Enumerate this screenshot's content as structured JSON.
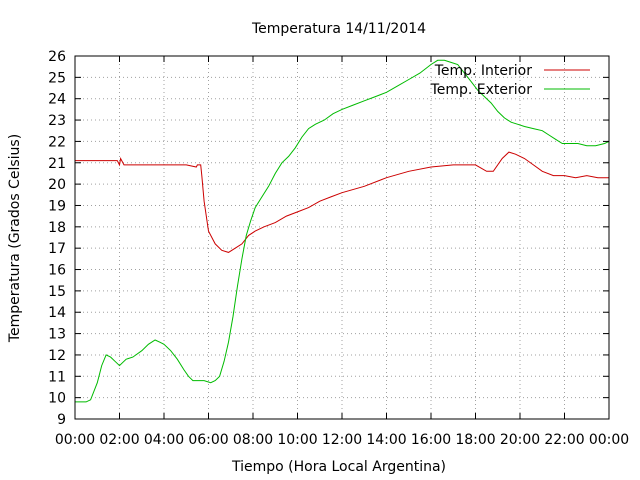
{
  "chart_data": {
    "type": "line",
    "title": "Temperatura 14/11/2014",
    "xlabel": "Tiempo (Hora Local Argentina)",
    "ylabel": "Temperatura (Grados Celsius)",
    "xlim": [
      0,
      24
    ],
    "ylim": [
      9,
      26
    ],
    "x_tick_labels": [
      "00:00",
      "02:00",
      "04:00",
      "06:00",
      "08:00",
      "10:00",
      "12:00",
      "14:00",
      "16:00",
      "18:00",
      "20:00",
      "22:00",
      "00:00"
    ],
    "y_tick_labels": [
      "9",
      "10",
      "11",
      "12",
      "13",
      "14",
      "15",
      "16",
      "17",
      "18",
      "19",
      "20",
      "21",
      "22",
      "23",
      "24",
      "25",
      "26"
    ],
    "grid": true,
    "legend_position": "top-right",
    "series": [
      {
        "name": "Temp. Interior",
        "color": "#cc0000",
        "x": [
          0,
          0.5,
          1,
          1.5,
          1.9,
          2.0,
          2.05,
          2.2,
          3,
          4,
          5,
          5.45,
          5.5,
          5.6,
          5.65,
          5.7,
          5.8,
          6.0,
          6.3,
          6.6,
          6.9,
          7.2,
          7.5,
          7.8,
          8.1,
          8.5,
          9,
          9.5,
          10,
          10.5,
          11,
          11.5,
          12,
          13,
          14,
          15,
          16,
          17,
          18,
          18.5,
          18.8,
          19.2,
          19.5,
          19.8,
          20.2,
          20.6,
          21,
          21.5,
          22,
          22.5,
          23,
          23.5,
          24
        ],
        "values": [
          21.1,
          21.1,
          21.1,
          21.1,
          21.1,
          20.9,
          21.2,
          20.9,
          20.9,
          20.9,
          20.9,
          20.8,
          20.9,
          20.9,
          20.9,
          20.4,
          19.2,
          17.8,
          17.2,
          16.9,
          16.8,
          17.0,
          17.2,
          17.6,
          17.8,
          18.0,
          18.2,
          18.5,
          18.7,
          18.9,
          19.2,
          19.4,
          19.6,
          19.9,
          20.3,
          20.6,
          20.8,
          20.9,
          20.9,
          20.6,
          20.6,
          21.2,
          21.5,
          21.4,
          21.2,
          20.9,
          20.6,
          20.4,
          20.4,
          20.3,
          20.4,
          20.3,
          20.3
        ]
      },
      {
        "name": "Temp. Exterior",
        "color": "#00bb00",
        "x": [
          0,
          0.3,
          0.5,
          0.7,
          1.0,
          1.2,
          1.4,
          1.6,
          1.8,
          2.0,
          2.3,
          2.6,
          3.0,
          3.3,
          3.6,
          3.8,
          4.0,
          4.3,
          4.6,
          4.9,
          5.1,
          5.3,
          5.5,
          5.8,
          6.1,
          6.3,
          6.5,
          6.7,
          6.9,
          7.1,
          7.3,
          7.5,
          7.7,
          7.9,
          8.1,
          8.4,
          8.7,
          9.0,
          9.3,
          9.6,
          9.9,
          10.2,
          10.5,
          10.8,
          11.2,
          11.6,
          12.0,
          12.5,
          13.0,
          13.5,
          14.0,
          14.5,
          15.0,
          15.5,
          16.0,
          16.3,
          16.6,
          16.9,
          17.2,
          17.5,
          17.8,
          18.1,
          18.4,
          18.7,
          19.0,
          19.3,
          19.6,
          19.9,
          20.2,
          20.6,
          21.0,
          21.3,
          21.6,
          21.9,
          22.2,
          22.6,
          23.0,
          23.4,
          23.8,
          24.0
        ],
        "values": [
          9.8,
          9.8,
          9.8,
          9.9,
          10.7,
          11.5,
          12.0,
          11.9,
          11.7,
          11.5,
          11.8,
          11.9,
          12.2,
          12.5,
          12.7,
          12.6,
          12.5,
          12.2,
          11.8,
          11.3,
          11.0,
          10.8,
          10.8,
          10.8,
          10.7,
          10.8,
          11.0,
          11.7,
          12.6,
          13.8,
          15.2,
          16.5,
          17.6,
          18.3,
          18.9,
          19.4,
          19.9,
          20.5,
          21.0,
          21.3,
          21.7,
          22.2,
          22.6,
          22.8,
          23.0,
          23.3,
          23.5,
          23.7,
          23.9,
          24.1,
          24.3,
          24.6,
          24.9,
          25.2,
          25.6,
          25.8,
          25.8,
          25.7,
          25.6,
          25.2,
          24.8,
          24.4,
          24.1,
          23.8,
          23.4,
          23.1,
          22.9,
          22.8,
          22.7,
          22.6,
          22.5,
          22.3,
          22.1,
          21.9,
          21.9,
          21.9,
          21.8,
          21.8,
          21.9,
          22.0
        ]
      }
    ]
  }
}
